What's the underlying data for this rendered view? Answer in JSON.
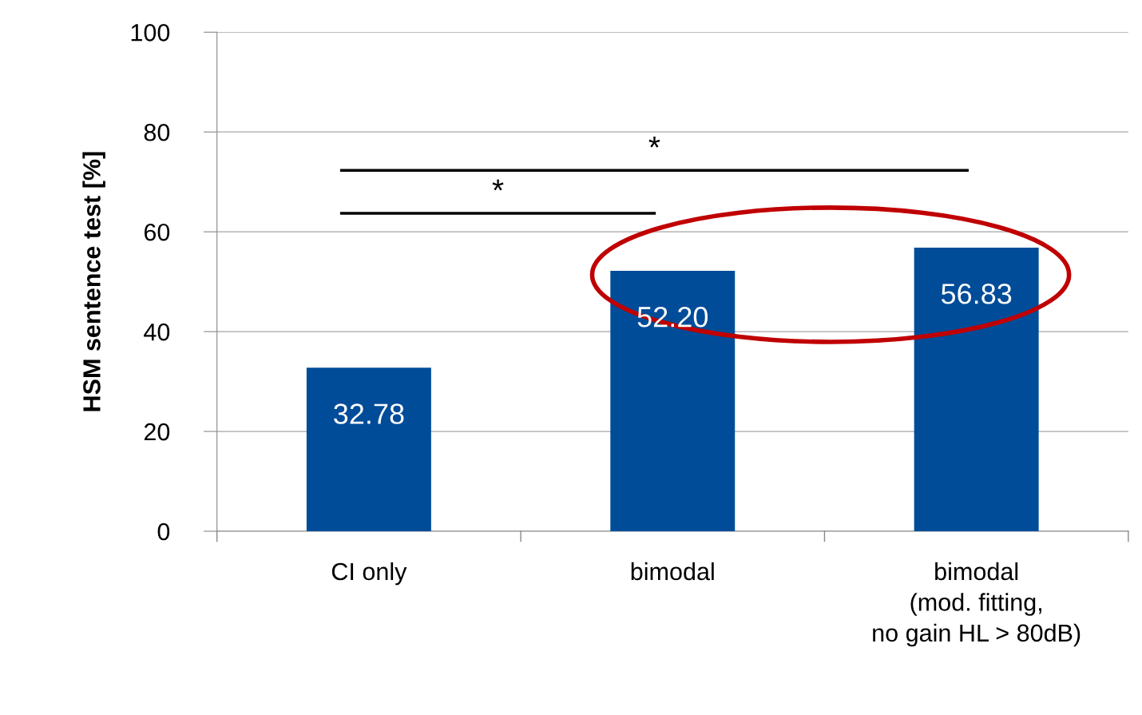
{
  "chart_data": {
    "type": "bar",
    "ylabel": "HSM sentence test [%]",
    "categories": [
      "CI only",
      "bimodal",
      "bimodal\n(mod. fitting,\nno gain HL > 80dB)"
    ],
    "values": [
      32.78,
      52.2,
      56.83
    ],
    "color": "#004c99",
    "value_labels": [
      "32.78",
      "52.20",
      "56.83"
    ],
    "ylim": [
      0,
      100
    ],
    "yticks": [
      0,
      20,
      40,
      60,
      80,
      100
    ],
    "grid": "y",
    "annotations": [
      "*",
      "*"
    ]
  }
}
